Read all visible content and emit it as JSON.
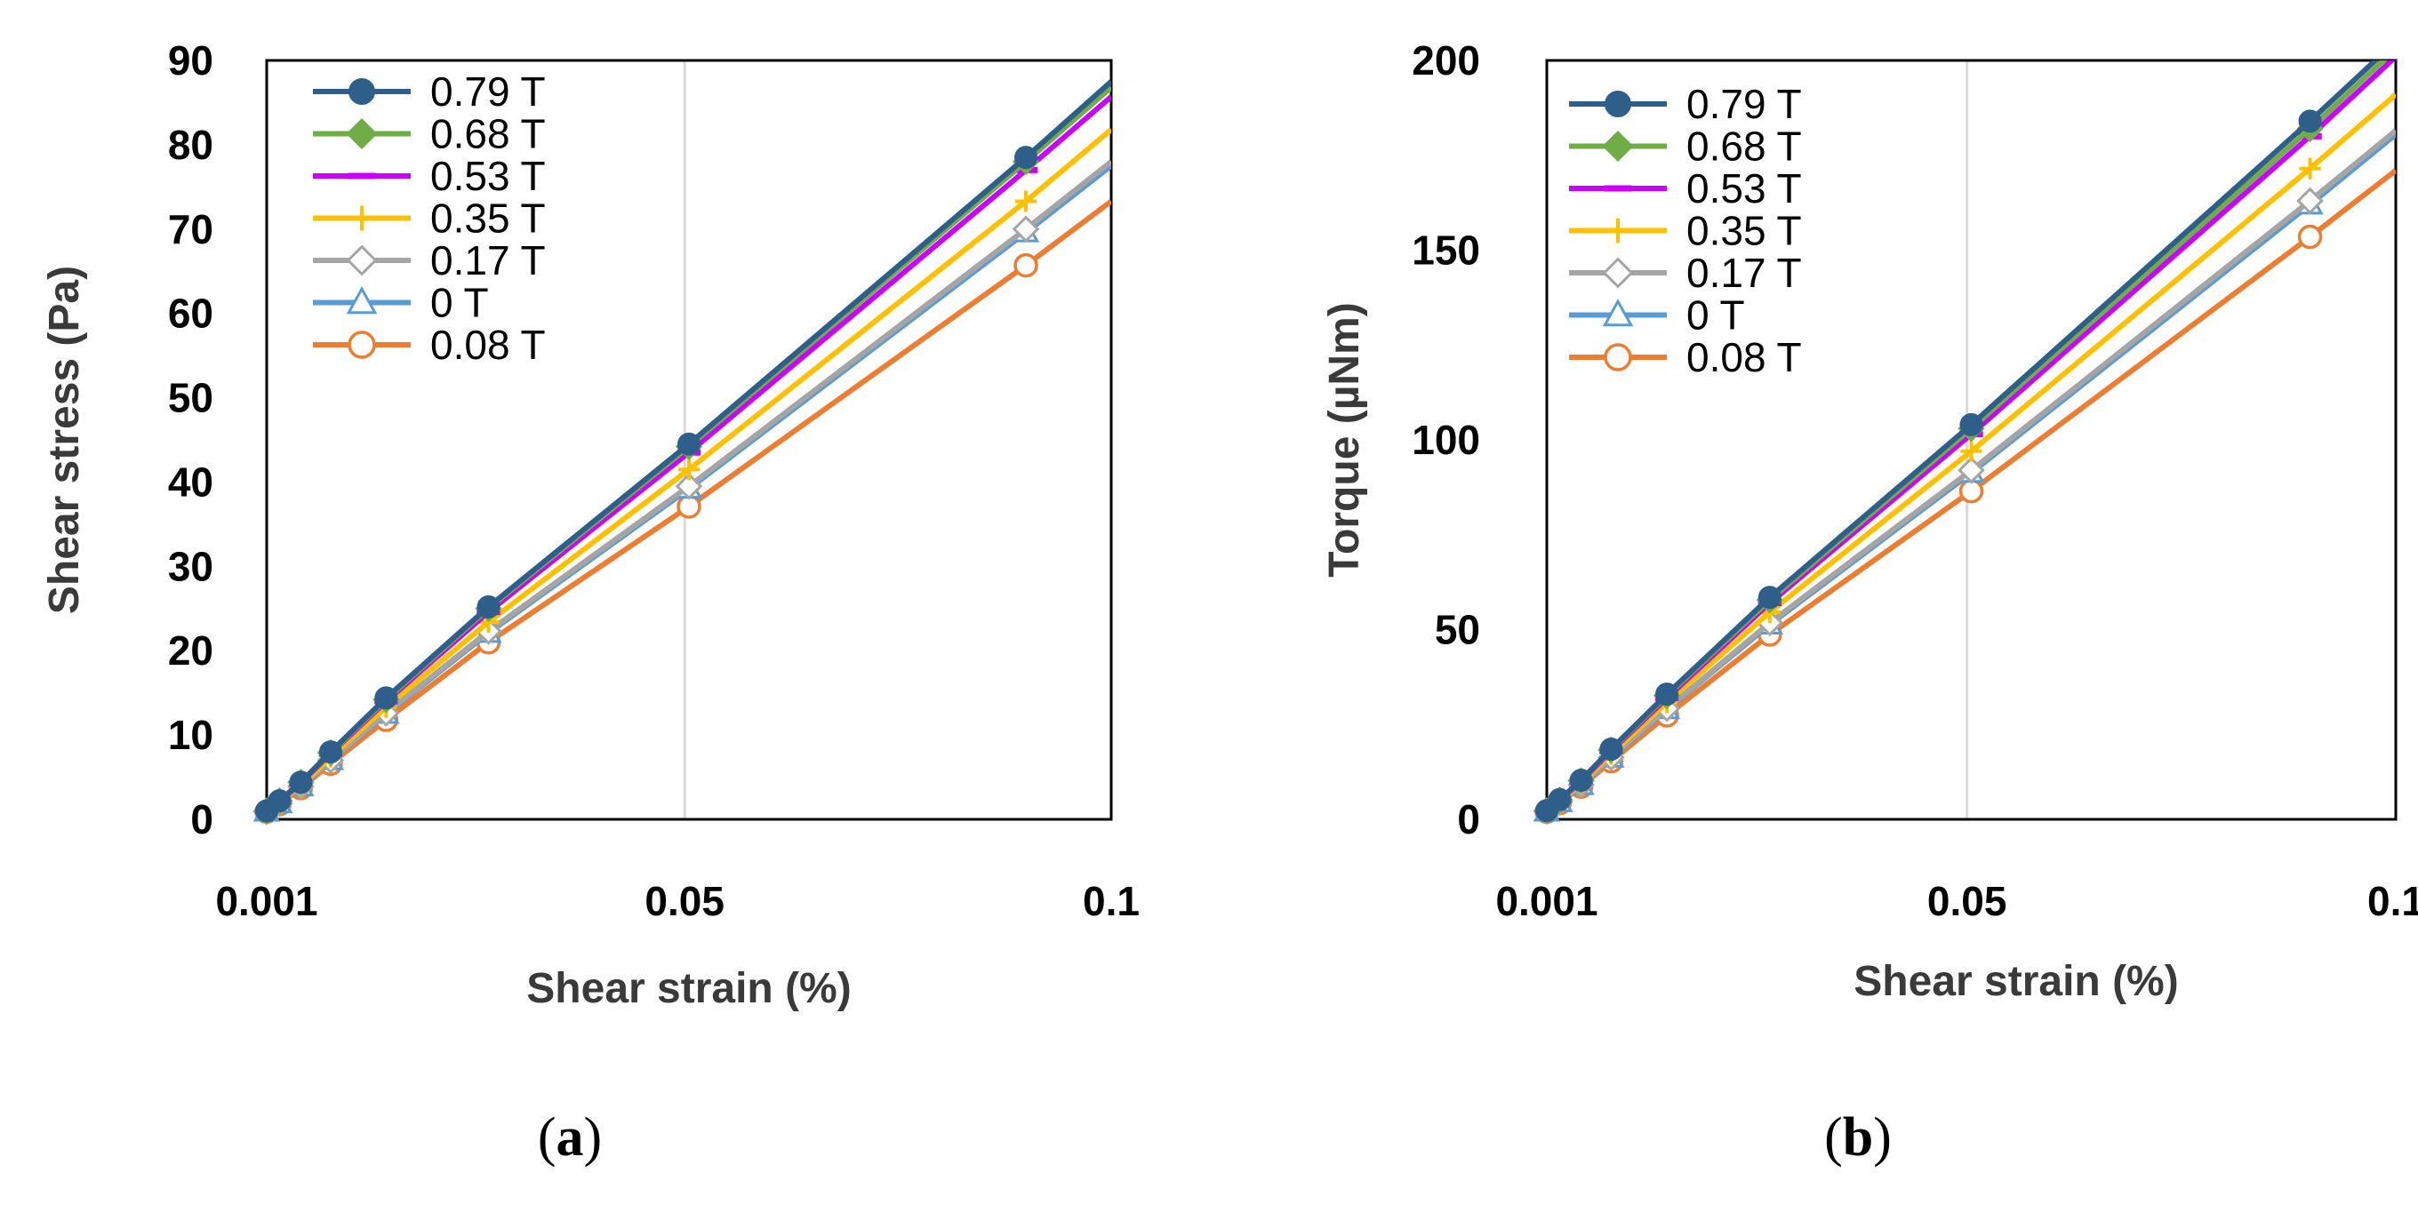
{
  "chart_data": [
    {
      "id": "a",
      "type": "line",
      "caption": {
        "open": "(",
        "letter": "a",
        "close": ")"
      },
      "xlabel": "Shear strain (%)",
      "ylabel": "Shear stress (Pa)",
      "ylim": [
        0,
        90
      ],
      "yticks": [
        "0",
        "10",
        "20",
        "30",
        "40",
        "50",
        "60",
        "70",
        "80",
        "90"
      ],
      "x_categories": [
        "0.001",
        "0.05",
        "0.1"
      ],
      "gridline_at_category": "0.05",
      "legend_position": "top-left",
      "series": [
        {
          "name": "0.79 T",
          "color": "#2e5f8a",
          "marker": "filled-circle",
          "points": [
            [
              0.001,
              1.0
            ],
            [
              0.0025,
              2.2
            ],
            [
              0.005,
              4.4
            ],
            [
              0.0085,
              8.0
            ],
            [
              0.015,
              14.4
            ],
            [
              0.027,
              25.2
            ],
            [
              0.0505,
              44.5
            ],
            [
              0.09,
              78.5
            ],
            [
              0.1,
              87.5
            ]
          ]
        },
        {
          "name": "0.68 T",
          "color": "#70ad47",
          "marker": "filled-diamond",
          "points": [
            [
              0.001,
              1.0
            ],
            [
              0.0025,
              2.2
            ],
            [
              0.005,
              4.4
            ],
            [
              0.0085,
              7.9
            ],
            [
              0.015,
              14.2
            ],
            [
              0.027,
              25.0
            ],
            [
              0.0505,
              44.2
            ],
            [
              0.09,
              78.0
            ],
            [
              0.1,
              86.8
            ]
          ]
        },
        {
          "name": "0.53 T",
          "color": "#cc00ff",
          "marker": "dash",
          "points": [
            [
              0.001,
              1.0
            ],
            [
              0.0025,
              2.1
            ],
            [
              0.005,
              4.3
            ],
            [
              0.0085,
              7.8
            ],
            [
              0.015,
              14.0
            ],
            [
              0.027,
              24.6
            ],
            [
              0.0505,
              43.5
            ],
            [
              0.09,
              77.0
            ],
            [
              0.1,
              85.7
            ]
          ]
        },
        {
          "name": "0.35 T",
          "color": "#ffc000",
          "marker": "plus",
          "points": [
            [
              0.001,
              1.0
            ],
            [
              0.0025,
              2.0
            ],
            [
              0.005,
              4.1
            ],
            [
              0.0085,
              7.4
            ],
            [
              0.015,
              13.3
            ],
            [
              0.027,
              23.4
            ],
            [
              0.0505,
              41.5
            ],
            [
              0.09,
              73.3
            ],
            [
              0.1,
              81.8
            ]
          ]
        },
        {
          "name": "0.17 T",
          "color": "#a5a5a5",
          "marker": "open-diamond",
          "points": [
            [
              0.001,
              0.9
            ],
            [
              0.0025,
              1.9
            ],
            [
              0.005,
              3.9
            ],
            [
              0.0085,
              7.0
            ],
            [
              0.015,
              12.6
            ],
            [
              0.027,
              22.3
            ],
            [
              0.0505,
              39.5
            ],
            [
              0.09,
              70.0
            ],
            [
              0.1,
              78.0
            ]
          ]
        },
        {
          "name": "0 T",
          "color": "#5b9bd5",
          "marker": "open-triangle",
          "points": [
            [
              0.001,
              0.9
            ],
            [
              0.0025,
              1.9
            ],
            [
              0.005,
              3.9
            ],
            [
              0.0085,
              7.0
            ],
            [
              0.015,
              12.5
            ],
            [
              0.027,
              22.1
            ],
            [
              0.0505,
              39.2
            ],
            [
              0.09,
              69.6
            ],
            [
              0.1,
              77.5
            ]
          ]
        },
        {
          "name": "0.08 T",
          "color": "#ed7d31",
          "marker": "open-circle",
          "points": [
            [
              0.001,
              0.9
            ],
            [
              0.0025,
              1.8
            ],
            [
              0.005,
              3.7
            ],
            [
              0.0085,
              6.6
            ],
            [
              0.015,
              11.8
            ],
            [
              0.027,
              21.0
            ],
            [
              0.0505,
              37.1
            ],
            [
              0.09,
              65.7
            ],
            [
              0.1,
              73.3
            ]
          ]
        }
      ]
    },
    {
      "id": "b",
      "type": "line",
      "caption": {
        "open": "(",
        "letter": "b",
        "close": ")"
      },
      "xlabel": "Shear strain (%)",
      "ylabel": "Torque (µNm)",
      "ylim": [
        0,
        200
      ],
      "yticks": [
        "0",
        "50",
        "100",
        "150",
        "200"
      ],
      "x_categories": [
        "0.001",
        "0.05",
        "0.1"
      ],
      "gridline_at_category": "0.05",
      "legend_position": "top-left",
      "series": [
        {
          "name": "0.79 T",
          "color": "#2e5f8a",
          "marker": "filled-circle",
          "points": [
            [
              0.001,
              2.3
            ],
            [
              0.0025,
              5.2
            ],
            [
              0.005,
              10.3
            ],
            [
              0.0085,
              18.5
            ],
            [
              0.015,
              33.0
            ],
            [
              0.027,
              58.5
            ],
            [
              0.0505,
              104.0
            ],
            [
              0.09,
              184.0
            ],
            [
              0.1,
              205.0
            ]
          ]
        },
        {
          "name": "0.68 T",
          "color": "#70ad47",
          "marker": "filled-diamond",
          "points": [
            [
              0.001,
              2.3
            ],
            [
              0.0025,
              5.1
            ],
            [
              0.005,
              10.2
            ],
            [
              0.0085,
              18.3
            ],
            [
              0.015,
              32.6
            ],
            [
              0.027,
              57.8
            ],
            [
              0.0505,
              103.0
            ],
            [
              0.09,
              182.0
            ],
            [
              0.1,
              203.0
            ]
          ]
        },
        {
          "name": "0.53 T",
          "color": "#cc00ff",
          "marker": "dash",
          "points": [
            [
              0.001,
              2.3
            ],
            [
              0.0025,
              5.0
            ],
            [
              0.005,
              10.0
            ],
            [
              0.0085,
              18.0
            ],
            [
              0.015,
              32.0
            ],
            [
              0.027,
              57.0
            ],
            [
              0.0505,
              101.5
            ],
            [
              0.09,
              180.0
            ],
            [
              0.1,
              201.0
            ]
          ]
        },
        {
          "name": "0.35 T",
          "color": "#ffc000",
          "marker": "plus",
          "points": [
            [
              0.001,
              2.2
            ],
            [
              0.0025,
              4.8
            ],
            [
              0.005,
              9.6
            ],
            [
              0.0085,
              17.2
            ],
            [
              0.015,
              30.8
            ],
            [
              0.027,
              54.6
            ],
            [
              0.0505,
              97.0
            ],
            [
              0.09,
              171.5
            ],
            [
              0.1,
              191.0
            ]
          ]
        },
        {
          "name": "0.17 T",
          "color": "#a5a5a5",
          "marker": "open-diamond",
          "points": [
            [
              0.001,
              2.1
            ],
            [
              0.0025,
              4.5
            ],
            [
              0.005,
              9.1
            ],
            [
              0.0085,
              16.3
            ],
            [
              0.015,
              29.2
            ],
            [
              0.027,
              51.8
            ],
            [
              0.0505,
              92.0
            ],
            [
              0.09,
              163.0
            ],
            [
              0.1,
              181.5
            ]
          ]
        },
        {
          "name": "0 T",
          "color": "#5b9bd5",
          "marker": "open-triangle",
          "points": [
            [
              0.001,
              2.0
            ],
            [
              0.0025,
              4.5
            ],
            [
              0.005,
              9.0
            ],
            [
              0.0085,
              16.2
            ],
            [
              0.015,
              29.0
            ],
            [
              0.027,
              51.3
            ],
            [
              0.0505,
              91.3
            ],
            [
              0.09,
              162.0
            ],
            [
              0.1,
              180.5
            ]
          ]
        },
        {
          "name": "0.08 T",
          "color": "#ed7d31",
          "marker": "open-circle",
          "points": [
            [
              0.001,
              2.0
            ],
            [
              0.0025,
              4.3
            ],
            [
              0.005,
              8.6
            ],
            [
              0.0085,
              15.3
            ],
            [
              0.015,
              27.4
            ],
            [
              0.027,
              48.7
            ],
            [
              0.0505,
              86.5
            ],
            [
              0.09,
              153.5
            ],
            [
              0.1,
              171.0
            ]
          ]
        }
      ]
    }
  ]
}
